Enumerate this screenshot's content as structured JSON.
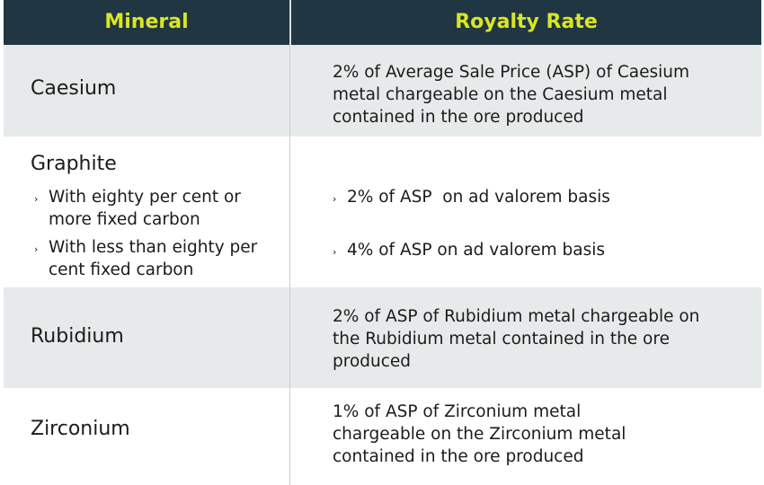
{
  "header": {
    "mineral_label": "Mineral",
    "rate_label": "Royalty Rate"
  },
  "colors": {
    "header_bg": "#203642",
    "header_text": "#d9e625",
    "shaded_row": "#e7eaea",
    "body_text": "#1b1b1b"
  },
  "rows": [
    {
      "mineral": "Caesium",
      "rate_lines": [
        "2% of Average Sale Price (ASP) of Caesium",
        "metal chargeable on the Caesium metal",
        "contained in the ore produced"
      ]
    },
    {
      "mineral": "Graphite",
      "sub_items": [
        {
          "bullet": "›",
          "label_lines": [
            "With eighty per cent or",
            "more fixed carbon"
          ],
          "rate": "2% of ASP  on ad valorem basis"
        },
        {
          "bullet": "›",
          "label_lines": [
            "With less than eighty per",
            "cent fixed carbon"
          ],
          "rate": "4% of ASP on ad valorem basis"
        }
      ]
    },
    {
      "mineral": "Rubidium",
      "rate_lines": [
        "2% of ASP of Rubidium metal chargeable on",
        "the Rubidium metal contained in the ore",
        "produced"
      ]
    },
    {
      "mineral": "Zirconium",
      "rate_lines": [
        "1% of ASP of Zirconium metal",
        "chargeable on the Zirconium metal",
        "contained in the ore produced"
      ]
    }
  ]
}
